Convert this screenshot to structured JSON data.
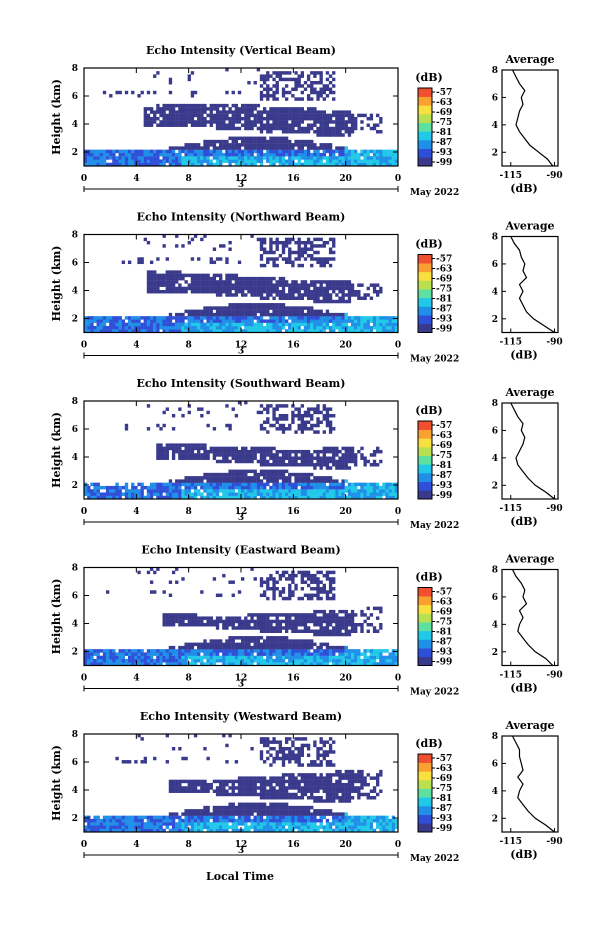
{
  "figure": {
    "xlabel": "Local Time",
    "date_label": "May 2022",
    "day_label": "3",
    "ylabel": "Height (km)",
    "colorbar_unit": "(dB)",
    "colorbar_ticks": [
      "-57",
      "-63",
      "-69",
      "-75",
      "-81",
      "-87",
      "-93",
      "-99"
    ],
    "colors": [
      "#3a3a8c",
      "#2f4fd8",
      "#1f8fe8",
      "#22c8e8",
      "#5ee0a0",
      "#b8e050",
      "#f8e040",
      "#f8a030",
      "#f05030"
    ]
  },
  "chart_data": [
    {
      "type": "heatmap",
      "title": "Echo Intensity (Vertical Beam)",
      "x_ticks": [
        "0",
        "4",
        "8",
        "12",
        "16",
        "20",
        "0"
      ],
      "y_ticks": [
        "2",
        "4",
        "6",
        "8"
      ],
      "xlim": [
        0,
        24
      ],
      "ylim": [
        1,
        8
      ],
      "profile": {
        "title": "Average",
        "xlabel": "(dB)",
        "x_ticks": [
          "-115",
          "-90"
        ],
        "y_ticks": [
          "2",
          "4",
          "6",
          "8"
        ],
        "xlim": [
          -120,
          -88
        ],
        "ylim": [
          1,
          8
        ],
        "height": [
          1.0,
          1.5,
          2.0,
          2.5,
          3.0,
          3.5,
          4.0,
          4.5,
          5.0,
          5.5,
          6.0,
          6.5,
          7.0,
          7.5,
          8.0
        ],
        "value": [
          -91,
          -94,
          -99,
          -104,
          -107,
          -110,
          -112,
          -111,
          -110,
          -108,
          -109,
          -107,
          -110,
          -112,
          -114
        ]
      }
    },
    {
      "type": "heatmap",
      "title": "Echo Intensity (Northward Beam)",
      "x_ticks": [
        "0",
        "4",
        "8",
        "12",
        "16",
        "20",
        "0"
      ],
      "y_ticks": [
        "2",
        "4",
        "6",
        "8"
      ],
      "xlim": [
        0,
        24
      ],
      "ylim": [
        1,
        8
      ],
      "profile": {
        "title": "Average",
        "xlabel": "(dB)",
        "x_ticks": [
          "-115",
          "-90"
        ],
        "y_ticks": [
          "2",
          "4",
          "6",
          "8"
        ],
        "xlim": [
          -120,
          -88
        ],
        "ylim": [
          1,
          8
        ],
        "height": [
          1.0,
          1.5,
          2.0,
          2.5,
          3.0,
          3.5,
          4.0,
          4.5,
          5.0,
          5.5,
          6.0,
          6.5,
          7.0,
          7.5,
          8.0
        ],
        "value": [
          -90,
          -96,
          -102,
          -106,
          -108,
          -110,
          -108,
          -110,
          -106,
          -108,
          -107,
          -109,
          -110,
          -113,
          -115
        ]
      }
    },
    {
      "type": "heatmap",
      "title": "Echo Intensity (Southward Beam)",
      "x_ticks": [
        "0",
        "4",
        "8",
        "12",
        "16",
        "20",
        "0"
      ],
      "y_ticks": [
        "2",
        "4",
        "6",
        "8"
      ],
      "xlim": [
        0,
        24
      ],
      "ylim": [
        1,
        8
      ],
      "profile": {
        "title": "Average",
        "xlabel": "(dB)",
        "x_ticks": [
          "-115",
          "-90"
        ],
        "y_ticks": [
          "2",
          "4",
          "6",
          "8"
        ],
        "xlim": [
          -120,
          -88
        ],
        "ylim": [
          1,
          8
        ],
        "height": [
          1.0,
          1.5,
          2.0,
          2.5,
          3.0,
          3.5,
          4.0,
          4.5,
          5.0,
          5.5,
          6.0,
          6.5,
          7.0,
          7.5,
          8.0
        ],
        "value": [
          -90,
          -95,
          -101,
          -105,
          -108,
          -111,
          -112,
          -110,
          -108,
          -107,
          -109,
          -108,
          -111,
          -113,
          -115
        ]
      }
    },
    {
      "type": "heatmap",
      "title": "Echo Intensity (Eastward Beam)",
      "x_ticks": [
        "0",
        "4",
        "8",
        "12",
        "16",
        "20",
        "0"
      ],
      "y_ticks": [
        "2",
        "4",
        "6",
        "8"
      ],
      "xlim": [
        0,
        24
      ],
      "ylim": [
        1,
        8
      ],
      "profile": {
        "title": "Average",
        "xlabel": "(dB)",
        "x_ticks": [
          "-115",
          "-90"
        ],
        "y_ticks": [
          "2",
          "4",
          "6",
          "8"
        ],
        "xlim": [
          -120,
          -88
        ],
        "ylim": [
          1,
          8
        ],
        "height": [
          1.0,
          1.5,
          2.0,
          2.5,
          3.0,
          3.5,
          4.0,
          4.5,
          5.0,
          5.5,
          6.0,
          6.5,
          7.0,
          7.5,
          8.0
        ],
        "value": [
          -91,
          -95,
          -101,
          -105,
          -108,
          -111,
          -110,
          -108,
          -110,
          -106,
          -108,
          -107,
          -109,
          -112,
          -114
        ]
      }
    },
    {
      "type": "heatmap",
      "title": "Echo Intensity (Westward Beam)",
      "x_ticks": [
        "0",
        "4",
        "8",
        "12",
        "16",
        "20",
        "0"
      ],
      "y_ticks": [
        "2",
        "4",
        "6",
        "8"
      ],
      "xlim": [
        0,
        24
      ],
      "ylim": [
        1,
        8
      ],
      "profile": {
        "title": "Average",
        "xlabel": "(dB)",
        "x_ticks": [
          "-115",
          "-90"
        ],
        "y_ticks": [
          "2",
          "4",
          "6",
          "8"
        ],
        "xlim": [
          -120,
          -88
        ],
        "ylim": [
          1,
          8
        ],
        "height": [
          1.0,
          1.5,
          2.0,
          2.5,
          3.0,
          3.5,
          4.0,
          4.5,
          5.0,
          5.5,
          6.0,
          6.5,
          7.0,
          7.5,
          8.0
        ],
        "value": [
          -90,
          -95,
          -101,
          -105,
          -108,
          -111,
          -110,
          -108,
          -111,
          -108,
          -109,
          -110,
          -110,
          -112,
          -114
        ]
      }
    }
  ]
}
